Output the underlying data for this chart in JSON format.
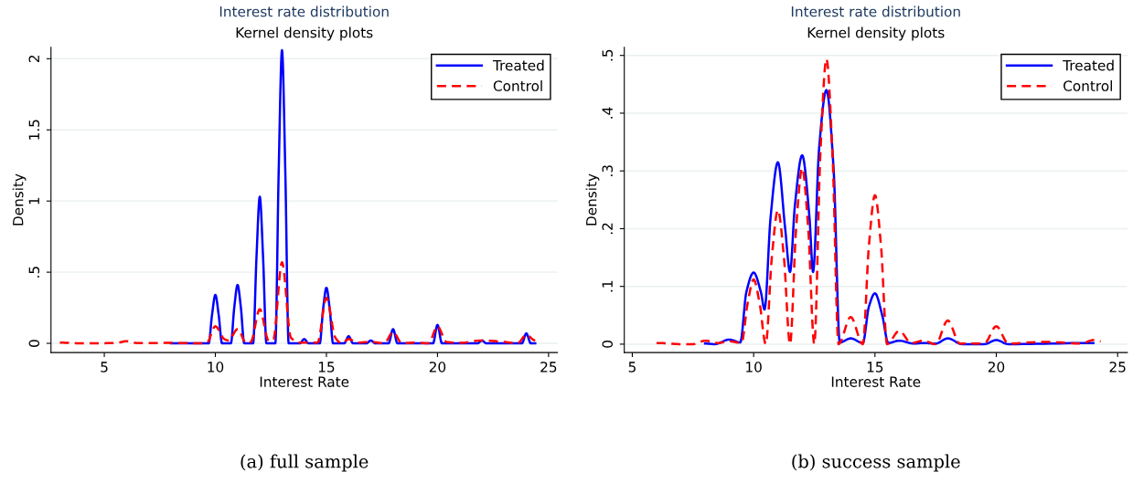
{
  "chart_data": [
    {
      "type": "line",
      "title": "Interest rate distribution",
      "subtitle": "Kernel density plots",
      "xlabel": "Interest Rate",
      "ylabel": "Density",
      "annotations": [
        "(a) full sample"
      ],
      "xlim": [
        2.6,
        25.4
      ],
      "ylim": [
        -0.065,
        2.08
      ],
      "xticks": [
        5,
        10,
        15,
        20,
        25
      ],
      "yticks": [
        0,
        {
          "value": 0.5,
          "label": ".5"
        },
        1,
        1.5,
        2
      ],
      "grid": "y",
      "legend": "top right",
      "series": [
        {
          "name": "Treated",
          "color": "#0000ff",
          "line_style": "solid",
          "x": [
            8,
            9.7,
            9.85,
            10,
            10.15,
            10.3,
            10.7,
            10.85,
            11,
            11.15,
            11.3,
            11.7,
            11.85,
            12,
            12.15,
            12.3,
            12.7,
            12.85,
            13,
            13.15,
            13.3,
            13.8,
            14,
            14.2,
            14.7,
            14.85,
            15,
            15.15,
            15.3,
            15.8,
            16,
            16.2,
            16.8,
            17,
            17.2,
            17.8,
            18,
            18.2,
            19.8,
            20,
            20.2,
            21.8,
            22,
            22.2,
            23.8,
            24,
            24.2,
            24.4
          ],
          "values": [
            0,
            0,
            0.2,
            0.34,
            0.2,
            0,
            0,
            0.25,
            0.41,
            0.25,
            0,
            0,
            0.6,
            1.03,
            0.6,
            0,
            0,
            1.2,
            2.06,
            1.2,
            0,
            0,
            0.03,
            0,
            0,
            0.24,
            0.39,
            0.24,
            0,
            0,
            0.05,
            0,
            0,
            0.02,
            0,
            0,
            0.1,
            0,
            0,
            0.13,
            0,
            0,
            0.02,
            0,
            0,
            0.07,
            0,
            0
          ]
        },
        {
          "name": "Control",
          "color": "#ff0000",
          "line_style": "dashed",
          "x": [
            3,
            4,
            5.5,
            6,
            6.5,
            8,
            9.6,
            10,
            10.4,
            10.6,
            11,
            11.4,
            11.6,
            12,
            12.4,
            12.6,
            13,
            13.4,
            13.8,
            14.6,
            15,
            15.4,
            15.7,
            16,
            16.4,
            17,
            17.6,
            18,
            18.4,
            19,
            19.6,
            20,
            20.4,
            21,
            22,
            23,
            23.6,
            24,
            24.4
          ],
          "values": [
            0.005,
            0,
            0.002,
            0.015,
            0.002,
            0.003,
            0,
            0.12,
            0.03,
            0.02,
            0.1,
            0,
            0.01,
            0.24,
            0.02,
            0.02,
            0.57,
            0.04,
            0.005,
            0.005,
            0.32,
            0.04,
            0,
            0.03,
            0.005,
            0.01,
            0,
            0.08,
            0,
            0.005,
            0,
            0.12,
            0.01,
            0.003,
            0.02,
            0.01,
            0,
            0.06,
            0.02
          ]
        }
      ]
    },
    {
      "type": "line",
      "title": "Interest rate distribution",
      "subtitle": "Kernel density plots",
      "xlabel": "Interest Rate",
      "ylabel": "Density",
      "annotations": [
        "(b) success sample"
      ],
      "xlim": [
        4.67,
        25.4
      ],
      "ylim": [
        -0.0146,
        0.514
      ],
      "xticks": [
        5,
        10,
        15,
        20,
        25
      ],
      "yticks": [
        0,
        {
          "value": 0.1,
          "label": ".1"
        },
        {
          "value": 0.2,
          "label": ".2"
        },
        {
          "value": 0.3,
          "label": ".3"
        },
        {
          "value": 0.4,
          "label": ".4"
        },
        {
          "value": 0.5,
          "label": ".5"
        }
      ],
      "grid": "y",
      "legend": "top right",
      "series": [
        {
          "name": "Treated",
          "color": "#0000ff",
          "line_style": "solid",
          "x": [
            8,
            8.4,
            9,
            9.45,
            9.7,
            10,
            10.3,
            10.45,
            10.7,
            11,
            11.3,
            11.5,
            11.7,
            12,
            12.3,
            12.45,
            12.7,
            13,
            13.3,
            13.55,
            14,
            14.5,
            14.75,
            15,
            15.3,
            15.55,
            16,
            16.6,
            17,
            17.5,
            18,
            18.6,
            19.5,
            20,
            20.5,
            24
          ],
          "values": [
            0.001,
            0,
            0.008,
            0.003,
            0.09,
            0.124,
            0.09,
            0.06,
            0.22,
            0.315,
            0.2,
            0.125,
            0.24,
            0.327,
            0.22,
            0.125,
            0.34,
            0.44,
            0.3,
            0.003,
            0.01,
            0.002,
            0.065,
            0.088,
            0.05,
            0.002,
            0.006,
            0.001,
            0.002,
            0.001,
            0.01,
            0,
            0,
            0.007,
            0,
            0.002
          ]
        },
        {
          "name": "Control",
          "color": "#ff0000",
          "line_style": "dashed",
          "x": [
            6,
            7,
            7.5,
            8,
            8.5,
            9,
            9.5,
            9.75,
            10,
            10.25,
            10.5,
            10.75,
            11,
            11.25,
            11.5,
            11.75,
            12,
            12.25,
            12.5,
            12.75,
            13,
            13.25,
            13.5,
            14,
            14.5,
            14.75,
            15,
            15.25,
            15.5,
            16,
            16.5,
            17,
            17.5,
            18,
            18.5,
            19.5,
            20,
            20.5,
            22,
            23.5,
            24,
            24.3
          ],
          "values": [
            0.002,
            0,
            0,
            0.006,
            0.002,
            0.005,
            0.002,
            0.07,
            0.112,
            0.07,
            0,
            0.15,
            0.232,
            0.15,
            0,
            0.2,
            0.305,
            0.2,
            0,
            0.33,
            0.494,
            0.33,
            0,
            0.047,
            0,
            0.17,
            0.258,
            0.17,
            0,
            0.023,
            0.002,
            0.006,
            0,
            0.041,
            0.001,
            0.001,
            0.031,
            0.001,
            0.004,
            0.001,
            0.007,
            0.005
          ]
        }
      ]
    }
  ]
}
